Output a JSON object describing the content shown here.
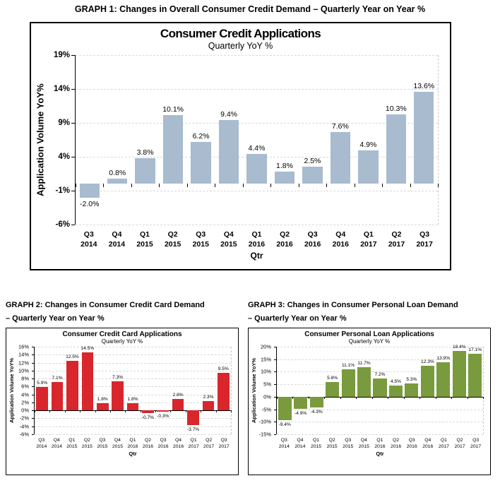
{
  "headings": {
    "graph1": "GRAPH 1: Changes in Overall Consumer Credit Demand – Quarterly Year on Year %",
    "graph2_line1": "GRAPH 2: Changes in Consumer Credit Card Demand",
    "graph2_line2": "– Quarterly Year on Year %",
    "graph3_line1": "GRAPH 3: Changes in Consumer Personal Loan Demand",
    "graph3_line2": "– Quarterly Year on Year %"
  },
  "colors": {
    "overall_bar": "#a8bbcf",
    "credit_card_bar": "#d8262c",
    "personal_loan_bar": "#7a9a3e",
    "gridline": "#d9d9d9",
    "axis": "#000000"
  },
  "chart_data": [
    {
      "type": "bar",
      "name": "overall-consumer-credit",
      "title": "Consumer Credit Applications",
      "subtitle": "Quarterly YoY %",
      "ylabel": "Application Volume YoY%",
      "xlabel": "Qtr",
      "bar_color": "#a8bbcf",
      "ymin": -6,
      "ymax": 19,
      "ystep": 5,
      "bar_frac": 0.72,
      "grid": true,
      "legend": "none",
      "categories": [
        {
          "q": "Q3",
          "year": "2014"
        },
        {
          "q": "Q4",
          "year": "2014"
        },
        {
          "q": "Q1",
          "year": "2015"
        },
        {
          "q": "Q2",
          "year": "2015"
        },
        {
          "q": "Q3",
          "year": "2015"
        },
        {
          "q": "Q4",
          "year": "2015"
        },
        {
          "q": "Q1",
          "year": "2016"
        },
        {
          "q": "Q2",
          "year": "2016"
        },
        {
          "q": "Q3",
          "year": "2016"
        },
        {
          "q": "Q4",
          "year": "2016"
        },
        {
          "q": "Q1",
          "year": "2017"
        },
        {
          "q": "Q2",
          "year": "2017"
        },
        {
          "q": "Q3",
          "year": "2017"
        }
      ],
      "values": [
        -2.0,
        0.8,
        3.8,
        10.1,
        6.2,
        9.4,
        4.4,
        1.8,
        2.5,
        7.6,
        4.9,
        10.3,
        13.6
      ],
      "labels": [
        "-2.0%",
        "0.8%",
        "3.8%",
        "10.1%",
        "6.2%",
        "9.4%",
        "4.4%",
        "1.8%",
        "2.5%",
        "7.6%",
        "4.9%",
        "10.3%",
        "13.6%"
      ]
    },
    {
      "type": "bar",
      "name": "consumer-credit-card",
      "title": "Consumer Credit Card Applications",
      "subtitle": "Quarterly YoY %",
      "ylabel": "Application Volume YoY%",
      "xlabel": "Qtr",
      "bar_color": "#d8262c",
      "ymin": -6,
      "ymax": 16,
      "ystep": 2,
      "bar_frac": 0.78,
      "grid": true,
      "legend": "none",
      "categories": [
        {
          "q": "Q3",
          "year": "2014"
        },
        {
          "q": "Q4",
          "year": "2014"
        },
        {
          "q": "Q1",
          "year": "2015"
        },
        {
          "q": "Q2",
          "year": "2015"
        },
        {
          "q": "Q3",
          "year": "2015"
        },
        {
          "q": "Q4",
          "year": "2015"
        },
        {
          "q": "Q1",
          "year": "2016"
        },
        {
          "q": "Q2",
          "year": "2016"
        },
        {
          "q": "Q3",
          "year": "2016"
        },
        {
          "q": "Q4",
          "year": "2016"
        },
        {
          "q": "Q1",
          "year": "2017"
        },
        {
          "q": "Q2",
          "year": "2017"
        },
        {
          "q": "Q3",
          "year": "2017"
        }
      ],
      "values": [
        5.9,
        7.1,
        12.5,
        14.5,
        1.8,
        7.3,
        1.8,
        -0.7,
        -0.3,
        2.8,
        -3.7,
        2.3,
        9.5
      ],
      "labels": [
        "5.9%",
        "7.1%",
        "12.5%",
        "14.5%",
        "1.8%",
        "7.3%",
        "1.8%",
        "-0.7%",
        "-0.3%",
        "2.8%",
        "-3.7%",
        "2.3%",
        "9.5%"
      ]
    },
    {
      "type": "bar",
      "name": "consumer-personal-loan",
      "title": "Consumer Personal Loan Applications",
      "subtitle": "Quarterly YoY %",
      "ylabel": "Application Volume YoY%",
      "xlabel": "Qtr",
      "bar_color": "#7a9a3e",
      "ymin": -15,
      "ymax": 20,
      "ystep": 5,
      "bar_frac": 0.85,
      "grid": true,
      "legend": "none",
      "categories": [
        {
          "q": "Q3",
          "year": "2014"
        },
        {
          "q": "Q4",
          "year": "2014"
        },
        {
          "q": "Q1",
          "year": "2015"
        },
        {
          "q": "Q2",
          "year": "2015"
        },
        {
          "q": "Q3",
          "year": "2015"
        },
        {
          "q": "Q4",
          "year": "2015"
        },
        {
          "q": "Q1",
          "year": "2016"
        },
        {
          "q": "Q2",
          "year": "2016"
        },
        {
          "q": "Q3",
          "year": "2016"
        },
        {
          "q": "Q4",
          "year": "2016"
        },
        {
          "q": "Q1",
          "year": "2017"
        },
        {
          "q": "Q2",
          "year": "2017"
        },
        {
          "q": "Q3",
          "year": "2017"
        }
      ],
      "values": [
        -9.4,
        -4.9,
        -4.3,
        5.8,
        11.1,
        11.7,
        7.2,
        4.5,
        5.3,
        12.3,
        13.9,
        18.4,
        17.1
      ],
      "labels": [
        "-9.4%",
        "-4.9%",
        "-4.3%",
        "5.8%",
        "11.1%",
        "11.7%",
        "7.2%",
        "4.5%",
        "5.3%",
        "12.3%",
        "13.9%",
        "18.4%",
        "17.1%"
      ]
    }
  ]
}
